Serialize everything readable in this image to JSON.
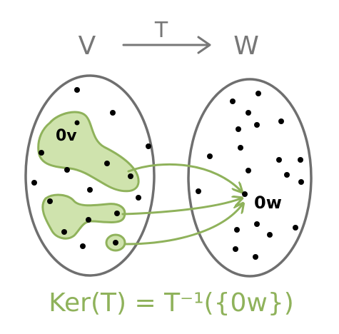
{
  "labels": {
    "domain": "V",
    "map": "T",
    "codomain": "W",
    "zero_v": "0v",
    "zero_w": "0w",
    "kernel_formula": "Ker(T) = T⁻¹({0w})"
  },
  "colors": {
    "outline": "#6f6f6f",
    "kernel_fill": "#cfe3ad",
    "kernel_stroke": "#8fb25b",
    "arrow": "#8fb25b",
    "formula": "#8fb25b",
    "label": "#777777",
    "dot": "#000000"
  }
}
